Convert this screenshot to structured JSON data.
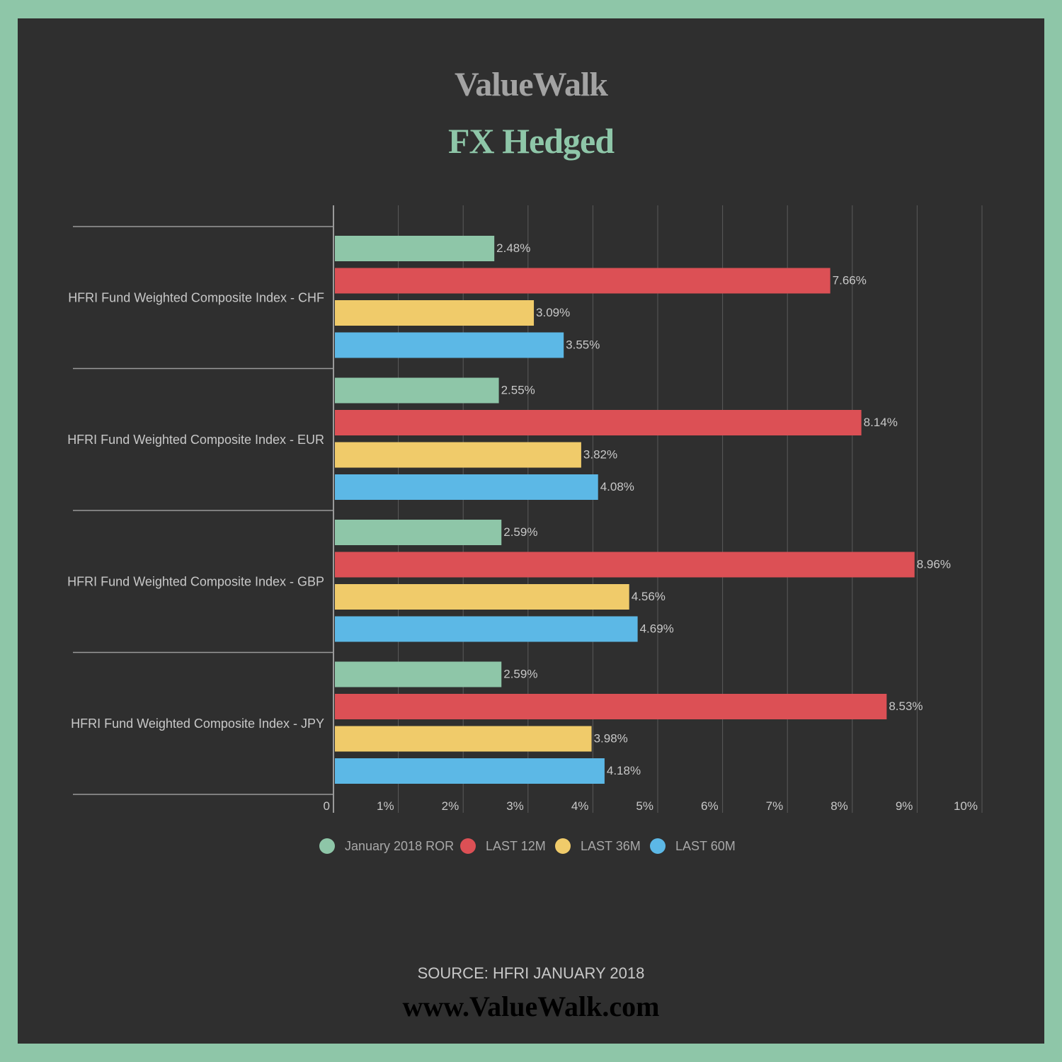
{
  "brand": "ValueWalk",
  "source": "SOURCE: HFRI JANUARY 2018",
  "website": "www.ValueWalk.com",
  "colors": {
    "background": "#2f2f2f",
    "frame": "#8ec6a8",
    "title": "#8ec6a8",
    "brand": "#a3a3a3",
    "grid": "#5a5a5a",
    "label": "#c8c8c8"
  },
  "chart_data": {
    "type": "bar",
    "orientation": "horizontal",
    "title": "FX Hedged",
    "categories": [
      "HFRI Fund Weighted Composite Index - CHF",
      "HFRI Fund Weighted Composite Index - EUR",
      "HFRI Fund Weighted Composite Index - GBP",
      "HFRI Fund Weighted Composite Index - JPY"
    ],
    "series": [
      {
        "name": "January 2018 ROR",
        "color": "#8ec6a8",
        "values": [
          2.48,
          2.55,
          2.59,
          2.59
        ],
        "labels": [
          "2.48%",
          "2.55%",
          "2.59%",
          "2.59%"
        ]
      },
      {
        "name": "LAST 12M",
        "color": "#dc5055",
        "values": [
          7.66,
          8.14,
          8.96,
          8.53
        ],
        "labels": [
          "7.66%",
          "8.14%",
          "8.96%",
          "8.53%"
        ]
      },
      {
        "name": "LAST 36M",
        "color": "#f0cb6a",
        "values": [
          3.09,
          3.82,
          4.56,
          3.98
        ],
        "labels": [
          "3.09%",
          "3.82%",
          "4.56%",
          "3.98%"
        ]
      },
      {
        "name": "LAST 60M",
        "color": "#5cb8e6",
        "values": [
          3.55,
          4.08,
          4.69,
          4.18
        ],
        "labels": [
          "3.55%",
          "4.08%",
          "4.69%",
          "4.18%"
        ]
      }
    ],
    "xlim": [
      0,
      10
    ],
    "xticks": [
      0,
      1,
      2,
      3,
      4,
      5,
      6,
      7,
      8,
      9,
      10
    ],
    "xtick_labels": [
      "0",
      "1%",
      "2%",
      "3%",
      "4%",
      "5%",
      "6%",
      "7%",
      "8%",
      "9%",
      "10%"
    ],
    "grid": true,
    "legend": "bottom"
  }
}
